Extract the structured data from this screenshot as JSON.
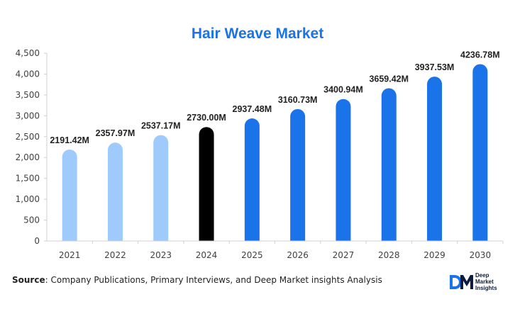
{
  "chart_data": {
    "type": "bar",
    "title": "Hair Weave Market",
    "categories": [
      "2021",
      "2022",
      "2023",
      "2024",
      "2025",
      "2026",
      "2027",
      "2028",
      "2029",
      "2030"
    ],
    "values": [
      2191.42,
      2357.97,
      2537.17,
      2730.0,
      2937.48,
      3160.73,
      3400.94,
      3659.42,
      3937.53,
      4236.78
    ],
    "data_labels": [
      "2191.42M",
      "2357.97M",
      "2537.17M",
      "2730.00M",
      "2937.48M",
      "3160.73M",
      "3400.94M",
      "3659.42M",
      "3937.53M",
      "4236.78M"
    ],
    "bar_colors": [
      "#9ecbfb",
      "#9ecbfb",
      "#9ecbfb",
      "#000000",
      "#1a73e8",
      "#1a73e8",
      "#1a73e8",
      "#1a73e8",
      "#1a73e8",
      "#1a73e8"
    ],
    "y_ticks": [
      0,
      500,
      1000,
      1500,
      2000,
      2500,
      3000,
      3500,
      4000,
      4500
    ],
    "y_tick_labels": [
      "0",
      "500",
      "1,000",
      "1,500",
      "2,000",
      "2,500",
      "3,000",
      "3,500",
      "4,000",
      "4,500"
    ],
    "ylim": [
      0,
      4500
    ],
    "xlabel": "",
    "ylabel": "",
    "grid": false,
    "legend": "none"
  },
  "source": {
    "key": "Source",
    "text": ": Company Publications, Primary Interviews, and Deep Market insights Analysis"
  },
  "brand": {
    "mark": "DM",
    "line1": "Deep",
    "line2": "Market",
    "line3": "Insights"
  },
  "colors": {
    "title": "#1a73e8",
    "historical": "#9ecbfb",
    "base_year": "#000000",
    "forecast": "#1a73e8"
  }
}
